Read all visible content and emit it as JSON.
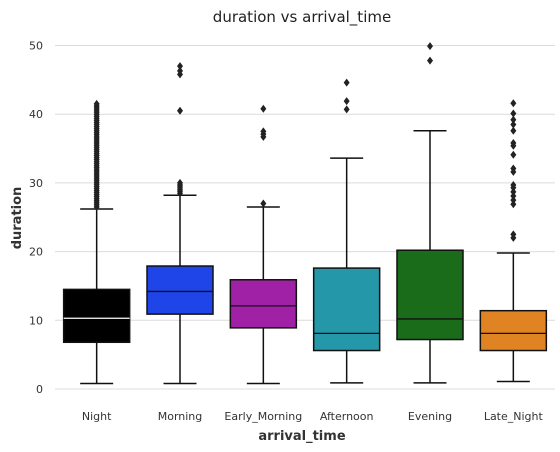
{
  "chart_data": {
    "type": "box",
    "title": "duration vs arrival_time",
    "xlabel": "arrival_time",
    "ylabel": "duration",
    "ylim": [
      0,
      51.5
    ],
    "yticks": [
      "0",
      "10",
      "20",
      "30",
      "40",
      "50"
    ],
    "grid": "horizontal",
    "categories": [
      "Night",
      "Morning",
      "Early_Morning",
      "Afternoon",
      "Evening",
      "Late_Night"
    ],
    "colors": [
      "#000000",
      "#1f44e8",
      "#a020a6",
      "#2497a8",
      "#1a6b1a",
      "#e08322"
    ],
    "boxes": [
      {
        "category": "Night",
        "whisker_low": 0.8,
        "q1": 6.8,
        "median": 10.3,
        "q3": 14.5,
        "whisker_high": 26.2,
        "outliers": [
          26.5,
          26.8,
          27.1,
          27.4,
          27.7,
          28.0,
          28.3,
          28.6,
          28.9,
          29.2,
          29.5,
          29.8,
          30.1,
          30.4,
          30.7,
          31.0,
          31.3,
          31.6,
          31.9,
          32.2,
          32.5,
          32.8,
          33.1,
          33.4,
          33.7,
          34.0,
          34.3,
          34.6,
          34.9,
          35.2,
          35.5,
          35.8,
          36.1,
          36.4,
          36.7,
          37.0,
          37.3,
          37.6,
          37.9,
          38.2,
          38.5,
          38.8,
          39.1,
          39.4,
          39.7,
          40.0,
          40.3,
          40.6,
          40.9,
          41.2,
          41.5
        ]
      },
      {
        "category": "Morning",
        "whisker_low": 0.8,
        "q1": 10.9,
        "median": 14.2,
        "q3": 17.9,
        "whisker_high": 28.2,
        "outliers": [
          28.5,
          28.8,
          29.1,
          29.4,
          29.7,
          30.0,
          40.5,
          45.8,
          46.3,
          47.0
        ]
      },
      {
        "category": "Early_Morning",
        "whisker_low": 0.8,
        "q1": 8.9,
        "median": 12.1,
        "q3": 15.9,
        "whisker_high": 26.5,
        "outliers": [
          27.0,
          36.7,
          37.1,
          37.5,
          40.8
        ]
      },
      {
        "category": "Afternoon",
        "whisker_low": 0.9,
        "q1": 5.6,
        "median": 8.1,
        "q3": 17.6,
        "whisker_high": 33.6,
        "outliers": [
          40.7,
          41.9,
          44.6
        ]
      },
      {
        "category": "Evening",
        "whisker_low": 0.9,
        "q1": 7.2,
        "median": 10.2,
        "q3": 20.2,
        "whisker_high": 37.6,
        "outliers": [
          47.8,
          49.9
        ]
      },
      {
        "category": "Late_Night",
        "whisker_low": 1.1,
        "q1": 5.6,
        "median": 8.1,
        "q3": 11.4,
        "whisker_high": 19.8,
        "outliers": [
          22.0,
          22.5,
          26.9,
          27.5,
          28.1,
          28.7,
          29.3,
          29.7,
          31.6,
          32.1,
          34.1,
          35.4,
          35.8,
          37.6,
          38.5,
          39.2,
          40.1,
          41.6
        ]
      }
    ]
  }
}
